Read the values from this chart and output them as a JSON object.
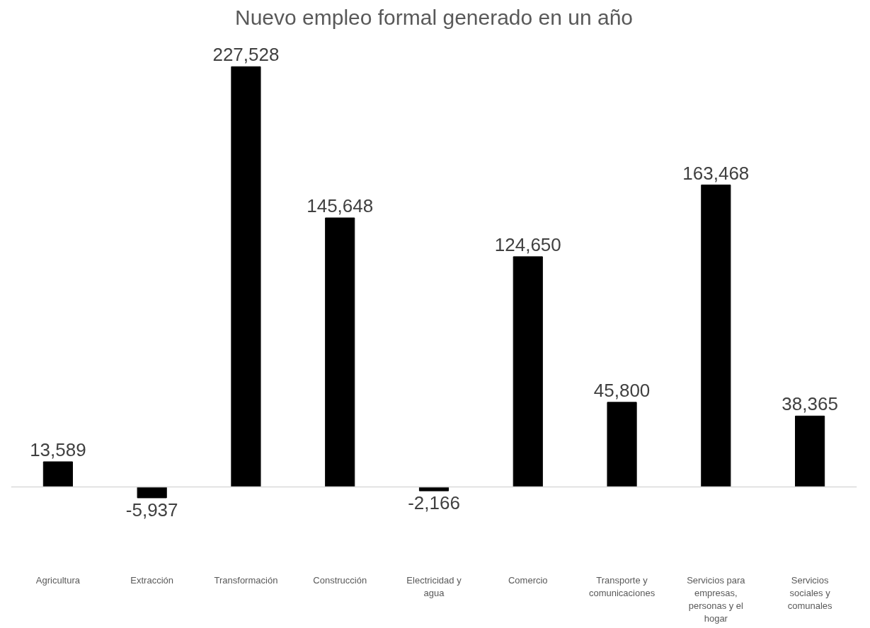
{
  "chart_data": {
    "type": "bar",
    "title": "Nuevo empleo formal generado en un año",
    "categories": [
      "Agricultura",
      "Extracción",
      "Transformación",
      "Construcción",
      "Electricidad y agua",
      "Comercio",
      "Transporte y comunicaciones",
      "Servicios para empresas, personas y el hogar",
      "Servicios sociales y comunales"
    ],
    "values": [
      13589,
      -5937,
      227528,
      145648,
      -2166,
      124650,
      45800,
      163468,
      38365
    ],
    "value_labels": [
      "13,589",
      "-5,937",
      "227,528",
      "145,648",
      "-2,166",
      "124,650",
      "45,800",
      "163,468",
      "38,365"
    ],
    "color": "#000000",
    "grid": false
  }
}
